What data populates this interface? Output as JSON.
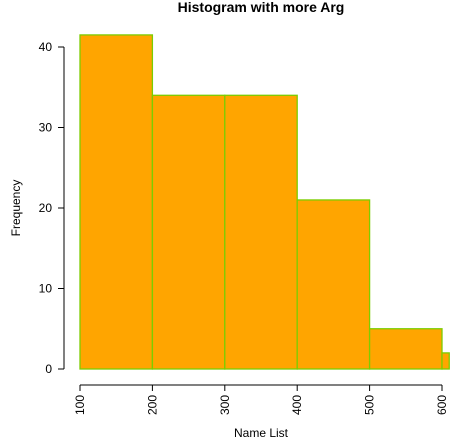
{
  "chart_data": {
    "type": "bar",
    "subtype": "histogram",
    "title": "Histogram with more Arg",
    "xlabel": "Name List",
    "ylabel": "Frequency",
    "bins": [
      {
        "start": 100,
        "end": 200,
        "count": 41.5
      },
      {
        "start": 200,
        "end": 300,
        "count": 34
      },
      {
        "start": 300,
        "end": 400,
        "count": 34
      },
      {
        "start": 400,
        "end": 500,
        "count": 21
      },
      {
        "start": 500,
        "end": 600,
        "count": 5
      },
      {
        "start": 600,
        "end": 610,
        "count": 2
      }
    ],
    "x_ticks": [
      "100",
      "200",
      "300",
      "400",
      "500",
      "600"
    ],
    "y_ticks": [
      "0",
      "10",
      "20",
      "30",
      "40"
    ],
    "xlim": [
      100,
      610
    ],
    "ylim": [
      0,
      41.5
    ],
    "fill_color": "#FFA500",
    "border_color": "#7CCD00",
    "grid": false,
    "legend": "none"
  }
}
